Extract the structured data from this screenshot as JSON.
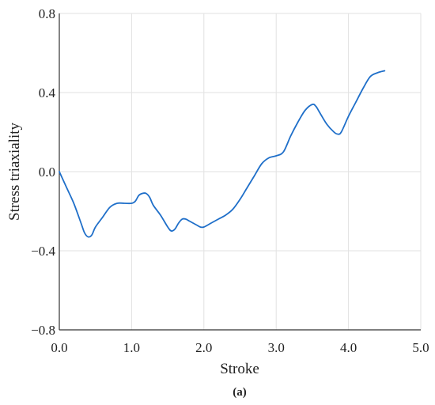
{
  "chart_data": {
    "type": "line",
    "xlabel": "Stroke",
    "ylabel": "Stress triaxiality",
    "caption": "(a)",
    "xlim": [
      0,
      5
    ],
    "ylim": [
      -0.8,
      0.8
    ],
    "grid": true,
    "x_ticks": [
      "0.0",
      "1.0",
      "2.0",
      "3.0",
      "4.0",
      "5.0"
    ],
    "y_ticks": [
      "0.8",
      "0.4",
      "0.0",
      "−0.4",
      "−0.8"
    ],
    "series": [
      {
        "color": "#1f6fc9",
        "x": [
          0.0,
          0.1,
          0.2,
          0.3,
          0.35,
          0.4,
          0.45,
          0.5,
          0.6,
          0.7,
          0.8,
          0.9,
          1.0,
          1.05,
          1.1,
          1.15,
          1.2,
          1.25,
          1.3,
          1.4,
          1.5,
          1.55,
          1.6,
          1.65,
          1.7,
          1.75,
          1.8,
          1.85,
          1.9,
          1.95,
          2.0,
          2.1,
          2.2,
          2.3,
          2.4,
          2.5,
          2.6,
          2.7,
          2.8,
          2.9,
          3.0,
          3.1,
          3.2,
          3.3,
          3.4,
          3.5,
          3.55,
          3.6,
          3.7,
          3.8,
          3.85,
          3.9,
          4.0,
          4.1,
          4.2,
          4.3,
          4.4,
          4.5
        ],
        "y": [
          0.0,
          -0.08,
          -0.16,
          -0.26,
          -0.31,
          -0.33,
          -0.32,
          -0.28,
          -0.23,
          -0.18,
          -0.16,
          -0.16,
          -0.16,
          -0.15,
          -0.12,
          -0.11,
          -0.11,
          -0.13,
          -0.17,
          -0.22,
          -0.28,
          -0.3,
          -0.29,
          -0.26,
          -0.24,
          -0.24,
          -0.25,
          -0.26,
          -0.27,
          -0.28,
          -0.28,
          -0.26,
          -0.24,
          -0.22,
          -0.19,
          -0.14,
          -0.08,
          -0.02,
          0.04,
          0.07,
          0.08,
          0.1,
          0.18,
          0.25,
          0.31,
          0.34,
          0.33,
          0.3,
          0.24,
          0.2,
          0.19,
          0.2,
          0.28,
          0.35,
          0.42,
          0.48,
          0.5,
          0.51
        ]
      }
    ]
  }
}
